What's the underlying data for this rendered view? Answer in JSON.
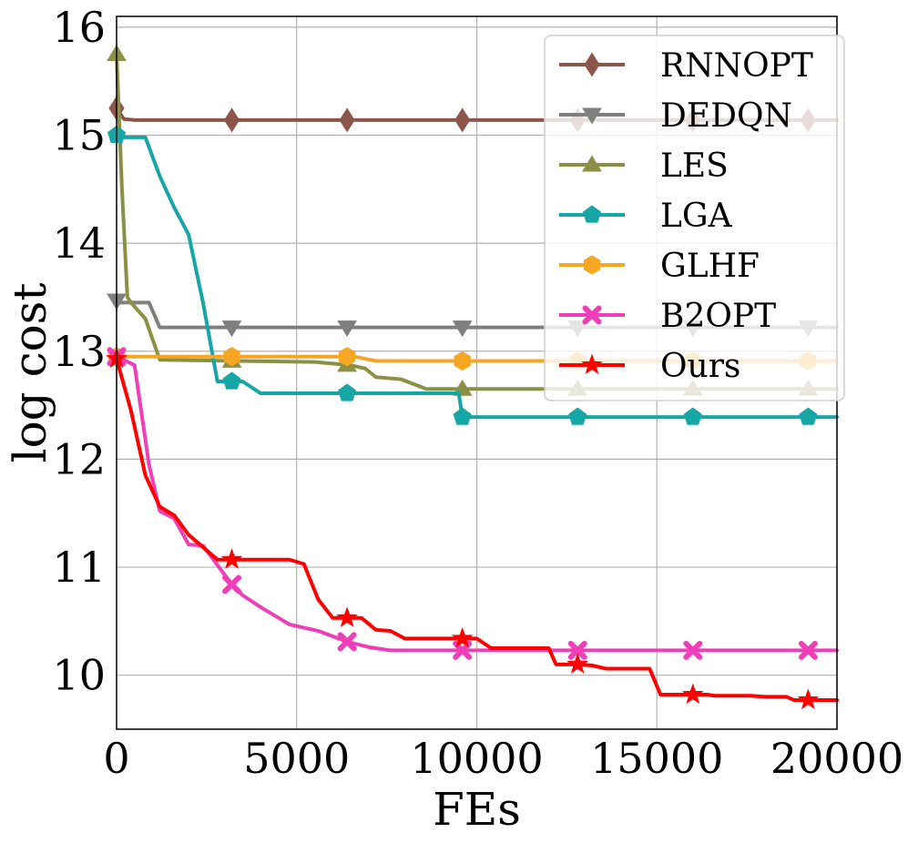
{
  "chart_data": {
    "type": "line",
    "xlabel": "FEs",
    "ylabel": "log cost",
    "xlim": [
      0,
      20000
    ],
    "ylim": [
      9.5,
      16.1
    ],
    "xticks": [
      0,
      5000,
      10000,
      15000,
      20000
    ],
    "yticks": [
      10,
      11,
      12,
      13,
      14,
      15,
      16
    ],
    "grid": true,
    "legend_position": "top-right",
    "marker_x": [
      3200,
      6400,
      9600,
      12800,
      16000,
      19200
    ],
    "series": [
      {
        "name": "RNNOPT",
        "color": "#8c564b",
        "marker": "diamond",
        "x": [
          0,
          200,
          500,
          20000
        ],
        "y": [
          15.25,
          15.15,
          15.14,
          15.14
        ]
      },
      {
        "name": "DEDQN",
        "color": "#7f7f7f",
        "marker": "triangle-down",
        "x": [
          0,
          100,
          900,
          1200,
          20000
        ],
        "y": [
          13.47,
          13.45,
          13.45,
          13.22,
          13.22
        ]
      },
      {
        "name": "LES",
        "color": "#8c9045",
        "marker": "triangle-up",
        "x": [
          0,
          150,
          300,
          400,
          800,
          1200,
          5500,
          6500,
          6900,
          7200,
          7900,
          8600,
          20000
        ],
        "y": [
          15.75,
          14.5,
          13.5,
          13.45,
          13.3,
          12.92,
          12.9,
          12.87,
          12.84,
          12.76,
          12.74,
          12.65,
          12.65
        ]
      },
      {
        "name": "LGA",
        "color": "#17a6a6",
        "marker": "pentagon",
        "x": [
          0,
          100,
          800,
          1200,
          1600,
          2000,
          2400,
          2800,
          3000,
          3500,
          4000,
          9500,
          9600,
          20000
        ],
        "y": [
          15.0,
          14.98,
          14.98,
          14.62,
          14.33,
          14.08,
          13.45,
          12.72,
          12.72,
          12.72,
          12.61,
          12.61,
          12.39,
          12.39
        ]
      },
      {
        "name": "GLHF",
        "color": "#f5a623",
        "marker": "hexagon",
        "x": [
          0,
          6600,
          7200,
          20000
        ],
        "y": [
          12.95,
          12.95,
          12.91,
          12.91
        ]
      },
      {
        "name": "B2OPT",
        "color": "#ee3fb8",
        "marker": "x",
        "x": [
          0,
          200,
          500,
          900,
          1200,
          1600,
          2000,
          2400,
          2800,
          3200,
          3500,
          4000,
          4800,
          5600,
          6400,
          7000,
          7600,
          20000
        ],
        "y": [
          12.95,
          12.92,
          12.87,
          11.95,
          11.52,
          11.45,
          11.21,
          11.2,
          11.02,
          10.84,
          10.74,
          10.63,
          10.47,
          10.41,
          10.31,
          10.26,
          10.23,
          10.23
        ]
      },
      {
        "name": "Ours",
        "color": "#ff0000",
        "marker": "star",
        "x": [
          0,
          400,
          800,
          1200,
          1600,
          2000,
          2800,
          3200,
          3600,
          4800,
          5200,
          5600,
          6000,
          6400,
          6800,
          7200,
          7600,
          8000,
          9200,
          9600,
          10000,
          10400,
          12000,
          12200,
          12800,
          13200,
          13600,
          14400,
          14800,
          15100,
          16400,
          16600,
          17600,
          18000,
          18600,
          18800,
          20000
        ],
        "y": [
          12.93,
          12.45,
          11.85,
          11.56,
          11.48,
          11.3,
          11.07,
          11.07,
          11.07,
          11.07,
          11.03,
          10.7,
          10.53,
          10.53,
          10.53,
          10.42,
          10.41,
          10.34,
          10.34,
          10.34,
          10.34,
          10.25,
          10.25,
          10.1,
          10.1,
          10.09,
          10.06,
          10.06,
          10.06,
          9.82,
          9.82,
          9.81,
          9.81,
          9.8,
          9.8,
          9.77,
          9.77
        ]
      }
    ]
  }
}
